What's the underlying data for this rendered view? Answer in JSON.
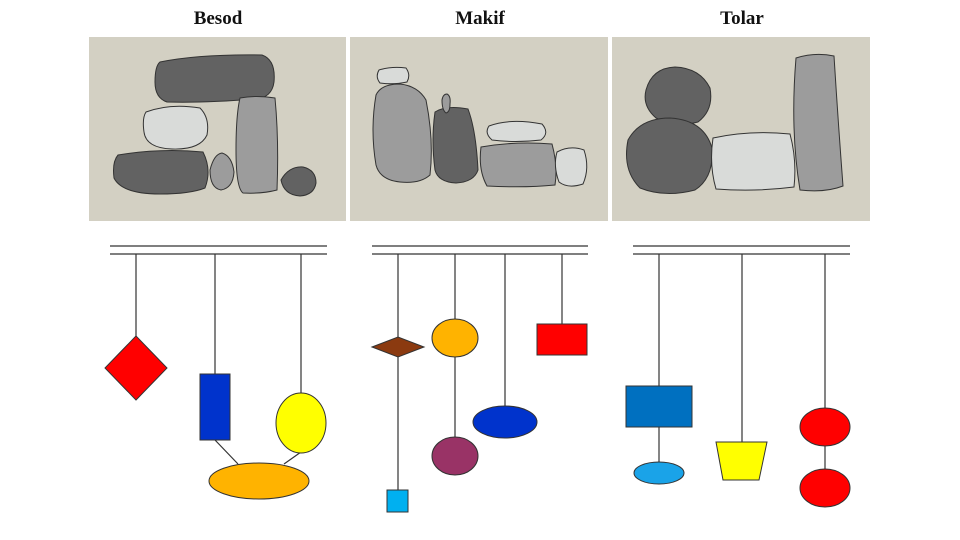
{
  "headers": {
    "col1": "Besod",
    "col2": "Makif",
    "col3": "Tolar"
  },
  "colors": {
    "panel_bg": "#d3d0c3",
    "stone_dark": "#626262",
    "stone_mid": "#9c9c9c",
    "stone_light": "#d9dbd9",
    "red": "#ff0000",
    "blue": "#0033cc",
    "yellow": "#ffff00",
    "orange": "#ffb300",
    "brown": "#8b3a10",
    "purple": "#993366",
    "steel_blue": "#0070c0",
    "sky_blue": "#1aa3e8",
    "cyan": "#00b0f0"
  }
}
